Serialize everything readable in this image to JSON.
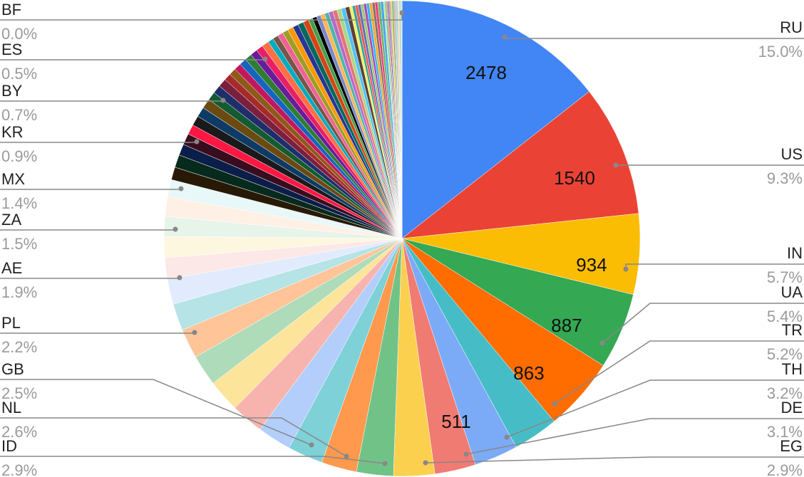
{
  "chart_data": {
    "type": "pie",
    "data_labels": [
      {
        "category": "RU",
        "value": 2478
      },
      {
        "category": "US",
        "value": 1540
      },
      {
        "category": "IN",
        "value": 934
      },
      {
        "category": "UA",
        "value": 887
      },
      {
        "category": "TR",
        "value": 863
      },
      {
        "category": "DE",
        "value": 511
      }
    ],
    "slices": [
      {
        "label": "RU",
        "percent": 15.0,
        "value": 2478,
        "color": "#4285F4"
      },
      {
        "label": "US",
        "percent": 9.3,
        "value": 1540,
        "color": "#EA4335"
      },
      {
        "label": "IN",
        "percent": 5.7,
        "value": 934,
        "color": "#FBBC04"
      },
      {
        "label": "UA",
        "percent": 5.4,
        "value": 887,
        "color": "#34A853"
      },
      {
        "label": "TR",
        "percent": 5.2,
        "value": 863,
        "color": "#FF6D01"
      },
      {
        "label": "TH",
        "percent": 3.2,
        "color": "#46BDC6"
      },
      {
        "label": "DE",
        "percent": 3.1,
        "value": 511,
        "color": "#7BAAF7"
      },
      {
        "label": "EG",
        "percent": 2.9,
        "color": "#F07B72"
      },
      {
        "label": "ID",
        "percent": 2.9,
        "color": "#FCD04F"
      },
      {
        "label": "NL",
        "percent": 2.6,
        "color": "#71C287"
      },
      {
        "label": "GB",
        "percent": 2.5,
        "color": "#FF994D"
      },
      {
        "label": "",
        "percent": 2.5,
        "color": "#7ED1D7"
      },
      {
        "label": "",
        "percent": 2.4,
        "color": "#B3CEFB"
      },
      {
        "label": "",
        "percent": 2.3,
        "color": "#F7B4AE"
      },
      {
        "label": "",
        "percent": 2.3,
        "color": "#FDE49B"
      },
      {
        "label": "PL",
        "percent": 2.2,
        "color": "#AEDCBA"
      },
      {
        "label": "",
        "percent": 2.1,
        "color": "#FFC599"
      },
      {
        "label": "AE",
        "percent": 1.9,
        "color": "#B5E3E6"
      },
      {
        "label": "",
        "percent": 1.8,
        "color": "#E1EBFD"
      },
      {
        "label": "ZA",
        "percent": 1.5,
        "color": "#FCE8E6"
      },
      {
        "label": "",
        "percent": 1.5,
        "color": "#FEF7E0"
      },
      {
        "label": "MX",
        "percent": 1.4,
        "color": "#E6F4EA"
      },
      {
        "label": "",
        "percent": 1.4,
        "color": "#FFF0E6"
      },
      {
        "label": "",
        "percent": 1.2,
        "color": "#E8F7F8"
      },
      {
        "label": "KR",
        "percent": 0.9,
        "color": "#281907"
      },
      {
        "label": "",
        "percent": 0.9,
        "color": "#062a1c"
      },
      {
        "label": "",
        "percent": 0.8,
        "color": "#0b1e4a"
      },
      {
        "label": "",
        "percent": 0.8,
        "color": "#3a0d1e"
      },
      {
        "label": "BY",
        "percent": 0.7,
        "color": "#ff1744"
      },
      {
        "label": "",
        "percent": 0.7,
        "color": "#1a1a1a"
      },
      {
        "label": "",
        "percent": 0.7,
        "color": "#0d3b66"
      },
      {
        "label": "",
        "percent": 0.7,
        "color": "#6b4a10"
      },
      {
        "label": "",
        "percent": 0.6,
        "color": "#145a32"
      },
      {
        "label": "",
        "percent": 0.6,
        "color": "#1f2e6b"
      },
      {
        "label": "",
        "percent": 0.6,
        "color": "#7a1f3d"
      },
      {
        "label": "ES",
        "percent": 0.5,
        "color": "#a62a2a"
      },
      {
        "label": "",
        "percent": 0.5,
        "color": "#8d5a1a"
      },
      {
        "label": "",
        "percent": 0.5,
        "color": "#c2185b"
      },
      {
        "label": "",
        "percent": 0.5,
        "color": "#1565c0"
      },
      {
        "label": "",
        "percent": 0.5,
        "color": "#2e7d32"
      },
      {
        "label": "",
        "percent": 0.5,
        "color": "#6a1b9a"
      },
      {
        "label": "",
        "percent": 0.5,
        "color": "#e91e63"
      },
      {
        "label": "",
        "percent": 0.5,
        "color": "#ff7043"
      },
      {
        "label": "",
        "percent": 0.4,
        "color": "#00acc1"
      },
      {
        "label": "",
        "percent": 0.4,
        "color": "#795548"
      },
      {
        "label": "",
        "percent": 0.4,
        "color": "#f06292"
      },
      {
        "label": "",
        "percent": 0.4,
        "color": "#9e9d24"
      },
      {
        "label": "",
        "percent": 0.4,
        "color": "#ff9800"
      },
      {
        "label": "",
        "percent": 0.4,
        "color": "#283593"
      },
      {
        "label": "",
        "percent": 0.4,
        "color": "#00695c"
      },
      {
        "label": "",
        "percent": 0.4,
        "color": "#d84315"
      },
      {
        "label": "",
        "percent": 0.3,
        "color": "#43a047"
      },
      {
        "label": "",
        "percent": 0.3,
        "color": "#000000"
      },
      {
        "label": "",
        "percent": 0.3,
        "color": "#7986cb"
      },
      {
        "label": "",
        "percent": 0.3,
        "color": "#ffb74d"
      },
      {
        "label": "",
        "percent": 0.3,
        "color": "#4db6ac"
      },
      {
        "label": "",
        "percent": 0.3,
        "color": "#ba68c8"
      },
      {
        "label": "",
        "percent": 0.3,
        "color": "#e57373"
      },
      {
        "label": "",
        "percent": 0.3,
        "color": "#aed581"
      },
      {
        "label": "",
        "percent": 0.3,
        "color": "#4fc3f7"
      },
      {
        "label": "",
        "percent": 0.3,
        "color": "#5d4037"
      },
      {
        "label": "",
        "percent": 0.2,
        "color": "#ffee58"
      },
      {
        "label": "",
        "percent": 0.2,
        "color": "#26a69a"
      },
      {
        "label": "",
        "percent": 0.2,
        "color": "#ef5350"
      },
      {
        "label": "",
        "percent": 0.2,
        "color": "#5c6bc0"
      },
      {
        "label": "",
        "percent": 0.2,
        "color": "#9ccc65"
      },
      {
        "label": "",
        "percent": 0.2,
        "color": "#ab47bc"
      },
      {
        "label": "",
        "percent": 0.2,
        "color": "#29b6f6"
      },
      {
        "label": "",
        "percent": 0.2,
        "color": "#ffa726"
      },
      {
        "label": "",
        "percent": 0.2,
        "color": "#8d6e63"
      },
      {
        "label": "",
        "percent": 0.2,
        "color": "#ec407a"
      },
      {
        "label": "",
        "percent": 0.2,
        "color": "#66bb6a"
      },
      {
        "label": "",
        "percent": 0.2,
        "color": "#42a5f5"
      },
      {
        "label": "",
        "percent": 0.1,
        "color": "#d4e157"
      },
      {
        "label": "",
        "percent": 0.1,
        "color": "#26c6da"
      },
      {
        "label": "",
        "percent": 0.1,
        "color": "#ff7043"
      },
      {
        "label": "",
        "percent": 0.1,
        "color": "#7e57c2"
      },
      {
        "label": "",
        "percent": 0.1,
        "color": "#9e9e9e"
      },
      {
        "label": "",
        "percent": 0.1,
        "color": "#ffca28"
      },
      {
        "label": "",
        "percent": 0.1,
        "color": "#4caf50"
      },
      {
        "label": "",
        "percent": 0.1,
        "color": "#f48fb1"
      },
      {
        "label": "",
        "percent": 0.1,
        "color": "#80cbc4"
      },
      {
        "label": "",
        "percent": 0.1,
        "color": "#b0bec5"
      },
      {
        "label": "",
        "percent": 0.1,
        "color": "#ffe082"
      },
      {
        "label": "",
        "percent": 0.1,
        "color": "#90caf9"
      },
      {
        "label": "",
        "percent": 0.1,
        "color": "#c5e1a5"
      },
      {
        "label": "BF",
        "percent": 0.0,
        "color": "#a5d6a7"
      }
    ],
    "legend": "none"
  }
}
